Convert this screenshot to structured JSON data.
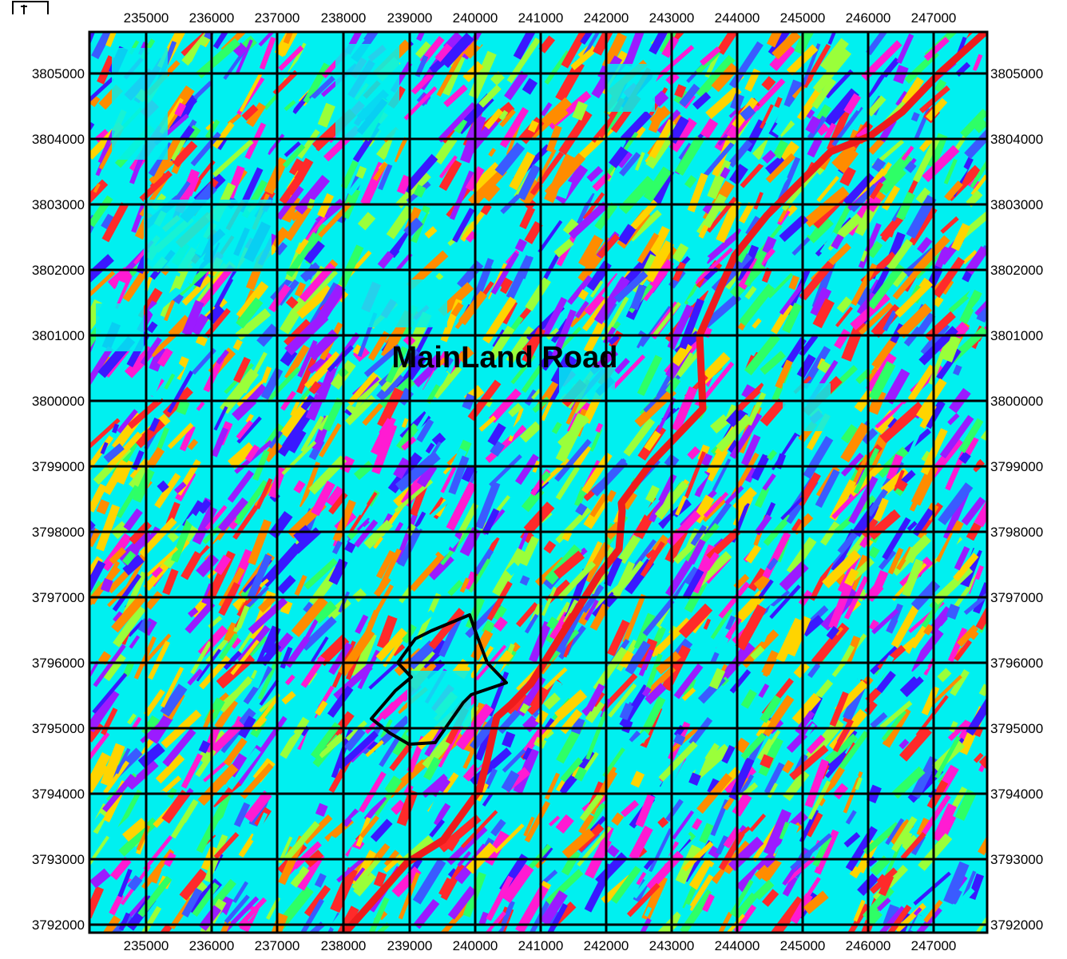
{
  "map": {
    "x_ticks": [
      "235000",
      "236000",
      "237000",
      "238000",
      "239000",
      "240000",
      "241000",
      "242000",
      "243000",
      "244000",
      "245000",
      "246000",
      "247000"
    ],
    "y_ticks": [
      "3805000",
      "3804000",
      "3803000",
      "3802000",
      "3801000",
      "3800000",
      "3799000",
      "3798000",
      "3797000",
      "3796000",
      "3795000",
      "3794000",
      "3793000",
      "3792000"
    ],
    "road_label": "MainLand Road",
    "colors": {
      "background_cyan": "#00f0f0",
      "road": "#ee1c1c",
      "grid": "#000000",
      "boundary": "#000000",
      "palette": [
        "#ff2a2a",
        "#ff8c00",
        "#ffd400",
        "#9aff3a",
        "#2eff66",
        "#00f0f0",
        "#3a5bff",
        "#3a18ff",
        "#9b1bff",
        "#ff1bd2"
      ]
    },
    "icons": {
      "north_arrow": "north-arrow-icon"
    }
  }
}
